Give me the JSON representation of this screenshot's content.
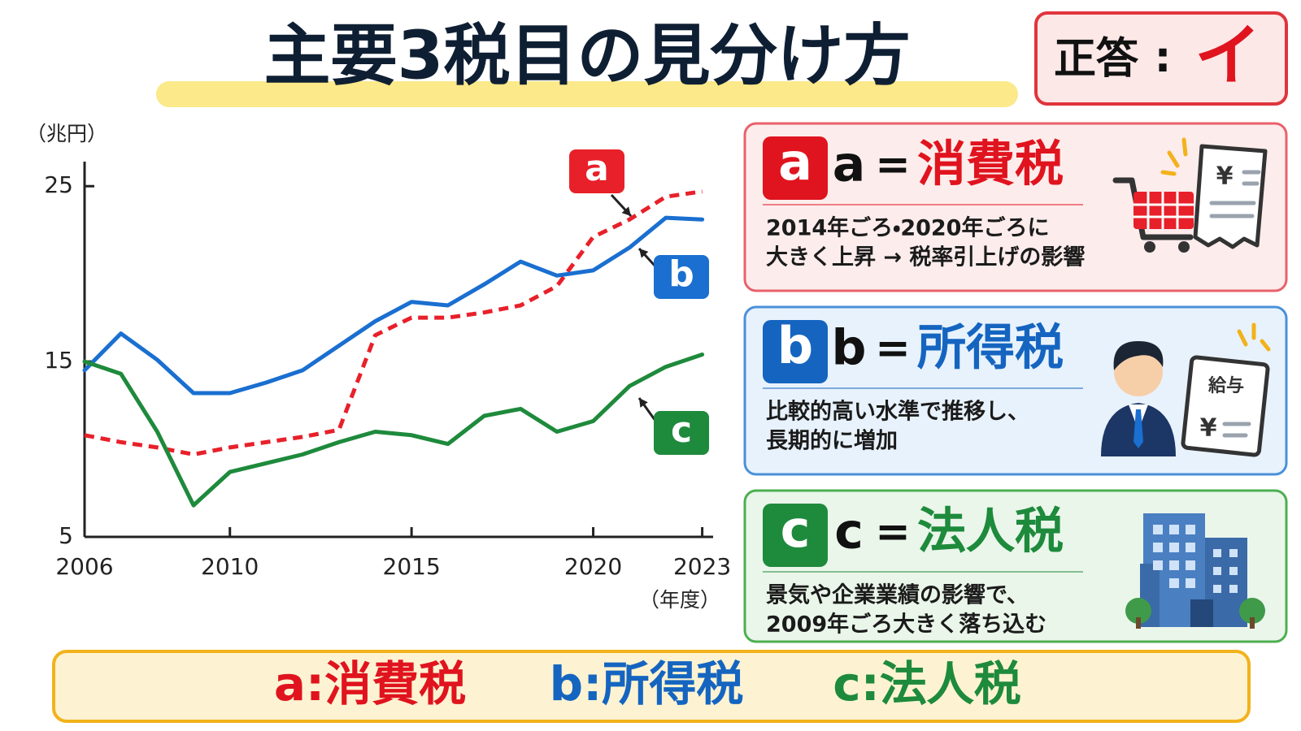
{
  "header": {
    "title": "主要3税目の見分け方"
  },
  "answer": {
    "label": "正答",
    "sep": ":",
    "value": "イ"
  },
  "chart_data": {
    "type": "line",
    "y_unit": "（兆円）",
    "x_unit": "（年度）",
    "x": [
      2006,
      2007,
      2008,
      2009,
      2010,
      2011,
      2012,
      2013,
      2014,
      2015,
      2016,
      2017,
      2018,
      2019,
      2020,
      2021,
      2022,
      2023
    ],
    "series": [
      {
        "name": "a",
        "color": "#e8202a",
        "dashed": true,
        "values": [
          10.8,
          10.4,
          10.1,
          9.7,
          10.1,
          10.4,
          10.7,
          11.1,
          16.5,
          17.5,
          17.5,
          17.8,
          18.2,
          19.3,
          22.1,
          23.1,
          24.4,
          24.7
        ]
      },
      {
        "name": "b",
        "color": "#1a6fd0",
        "dashed": false,
        "values": [
          14.5,
          16.6,
          15.1,
          13.2,
          13.2,
          13.8,
          14.5,
          15.9,
          17.3,
          18.4,
          18.2,
          19.4,
          20.7,
          19.9,
          20.2,
          21.5,
          23.2,
          23.1
        ]
      },
      {
        "name": "c",
        "color": "#1e8a3c",
        "dashed": false,
        "values": [
          15.0,
          14.3,
          11.0,
          6.8,
          8.7,
          9.2,
          9.7,
          10.4,
          11.0,
          10.8,
          10.3,
          11.9,
          12.3,
          11.0,
          11.6,
          13.6,
          14.7,
          15.4
        ]
      }
    ],
    "xlim": [
      2006,
      2023.3
    ],
    "ylim": [
      5,
      26.4
    ],
    "xticks": [
      2006,
      2010,
      2015,
      2020,
      2023
    ],
    "yticks": [
      5,
      15,
      25
    ]
  },
  "cards": [
    {
      "badge": "a",
      "letter": "a",
      "sep": "=",
      "tax": "消費税",
      "color": "#e0141e",
      "lines": [
        "2014年ごろ・2020年ごろに",
        "大きく上昇 → 税率引上げの影響"
      ],
      "icon_text": [
        "¥"
      ]
    },
    {
      "badge": "b",
      "letter": "b",
      "sep": "=",
      "tax": "所得税",
      "color": "#1565c0",
      "lines": [
        "比較的高い水準で推移し、",
        "長期的に増加"
      ],
      "icon_text": [
        "給与",
        "¥"
      ]
    },
    {
      "badge": "c",
      "letter": "c",
      "sep": "=",
      "tax": "法人税",
      "color": "#1e8a3c",
      "lines": [
        "景気や企業業績の影響で、",
        "2009年ごろ大きく落ち込む"
      ]
    }
  ],
  "summary": [
    {
      "letter": "a",
      "sep": ":",
      "tax": "消費税",
      "color": "#e0141e"
    },
    {
      "letter": "b",
      "sep": ":",
      "tax": "所得税",
      "color": "#1565c0"
    },
    {
      "letter": "c",
      "sep": ":",
      "tax": "法人税",
      "color": "#1e8a3c"
    }
  ]
}
